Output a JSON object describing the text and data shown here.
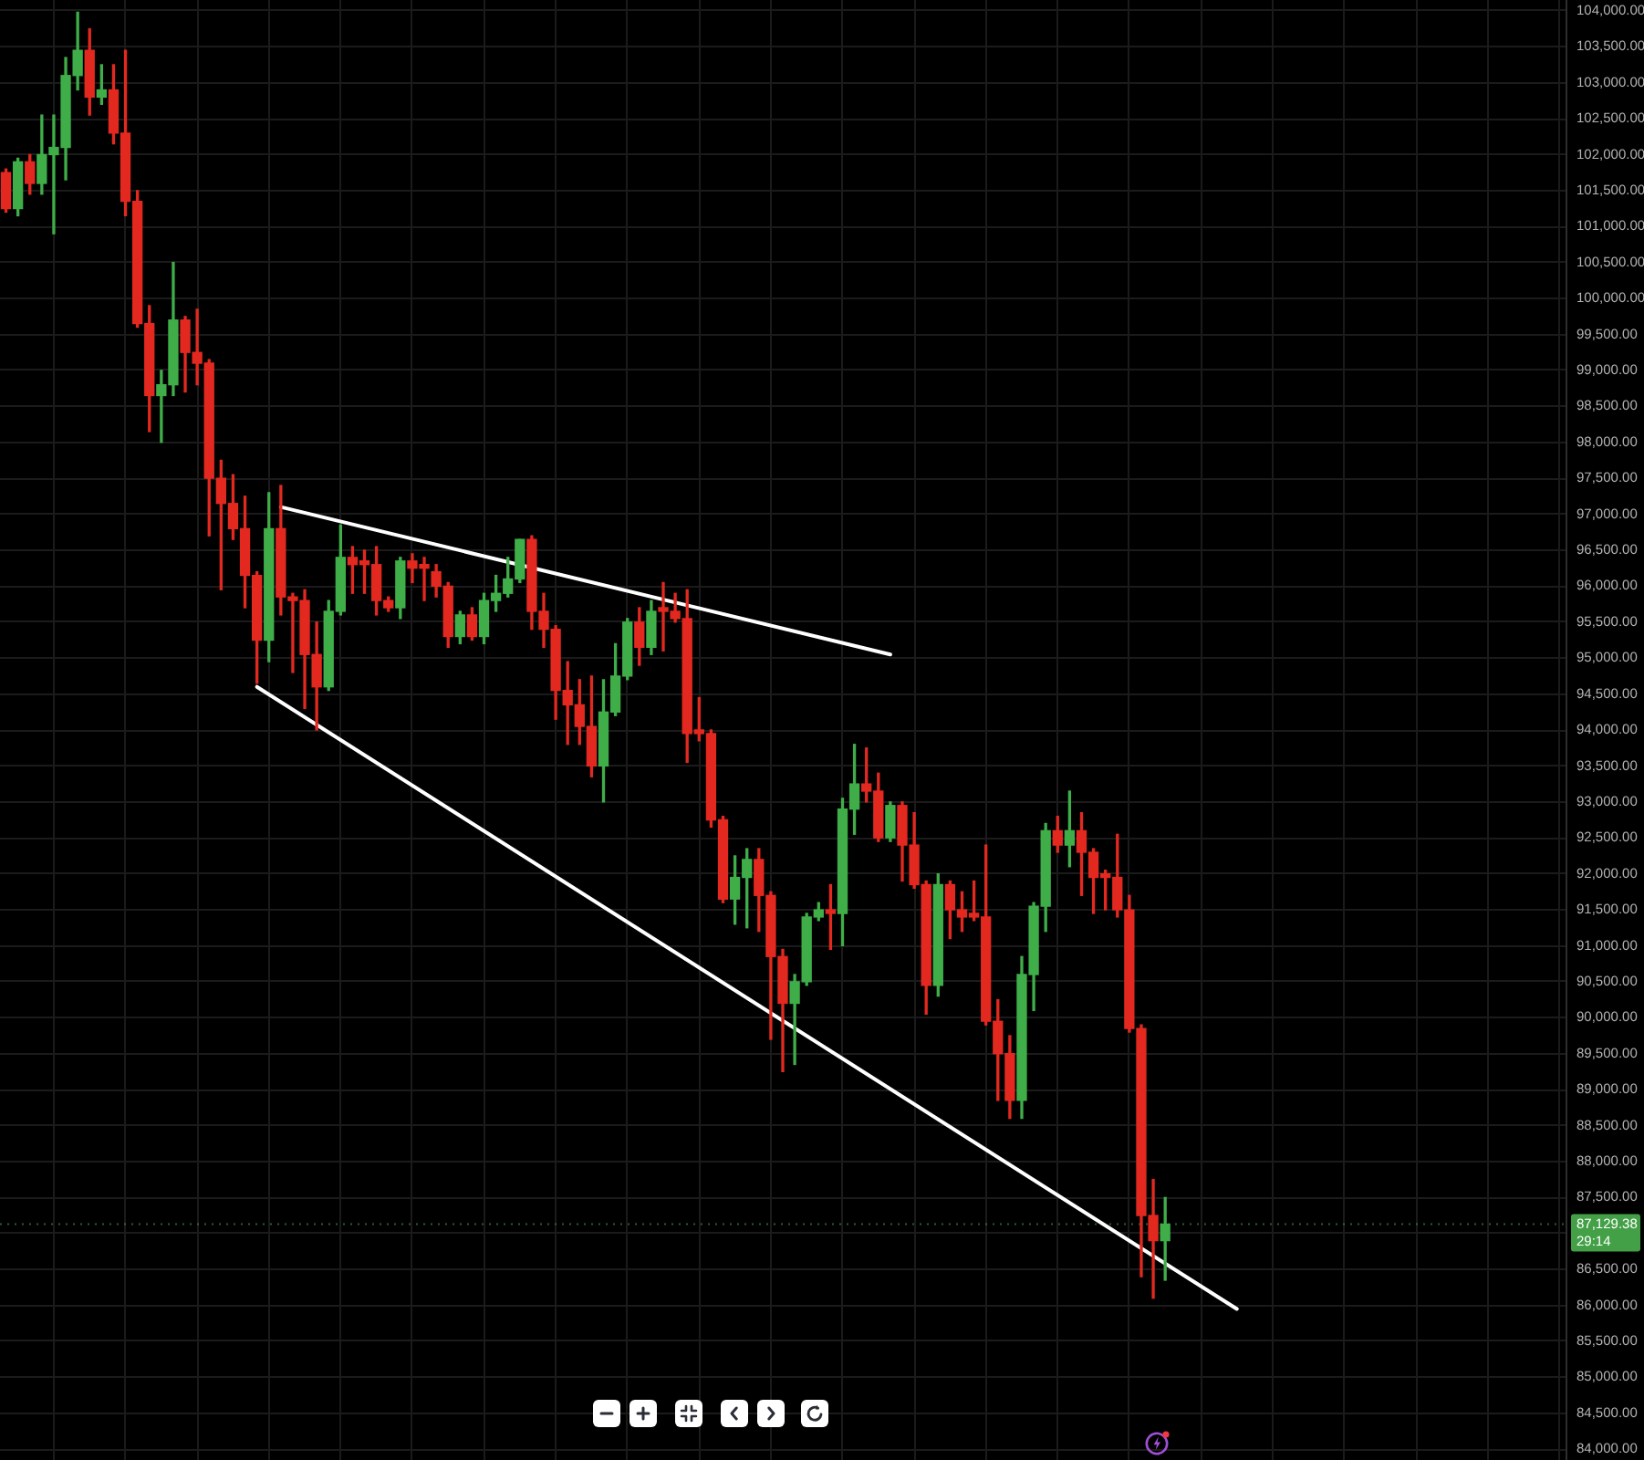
{
  "chart_data": {
    "type": "candlestick",
    "categories": [
      null,
      null,
      null,
      null,
      null,
      null,
      null,
      null,
      null,
      null,
      null,
      null,
      null,
      null,
      null,
      null,
      null,
      null,
      null,
      null,
      null,
      null,
      null,
      null,
      null,
      null,
      null,
      null,
      null,
      null,
      null,
      null,
      null,
      null,
      null,
      null,
      null,
      null,
      null,
      null,
      null,
      null,
      null,
      null,
      null,
      null,
      null,
      null,
      null,
      null,
      null,
      null,
      null,
      null,
      null,
      null,
      null,
      null,
      null,
      null,
      null,
      null,
      null,
      null,
      null,
      null,
      null,
      null,
      null,
      null,
      null,
      null,
      null,
      null,
      null,
      null,
      null,
      null,
      null,
      null,
      null,
      null,
      null,
      null,
      null,
      null,
      null,
      null,
      null,
      null,
      null,
      null,
      null,
      null,
      null,
      null,
      null,
      null,
      null,
      null,
      null,
      null,
      null,
      null,
      null,
      null,
      null,
      null,
      null,
      null,
      null,
      null,
      null,
      null,
      null,
      null,
      null,
      null,
      null,
      null,
      null,
      null,
      null,
      null,
      null,
      null,
      null,
      null,
      null,
      null,
      null
    ],
    "ohlc": [
      [
        101750,
        101800,
        101200,
        101250
      ],
      [
        101250,
        101950,
        101150,
        101900
      ],
      [
        101900,
        102000,
        101450,
        101600
      ],
      [
        101600,
        102550,
        101450,
        102000
      ],
      [
        102000,
        102550,
        100900,
        102100
      ],
      [
        102100,
        103350,
        101650,
        103100
      ],
      [
        103100,
        103980,
        102900,
        103450
      ],
      [
        103450,
        103750,
        102550,
        102800
      ],
      [
        102800,
        103250,
        102700,
        102900
      ],
      [
        102900,
        103250,
        102150,
        102300
      ],
      [
        102300,
        103450,
        101150,
        101350
      ],
      [
        101350,
        101500,
        99600,
        99650
      ],
      [
        99650,
        99900,
        98150,
        98650
      ],
      [
        98650,
        99000,
        98000,
        98800
      ],
      [
        98800,
        100500,
        98650,
        99700
      ],
      [
        99700,
        99750,
        98700,
        99250
      ],
      [
        99250,
        99850,
        98800,
        99100
      ],
      [
        99100,
        99150,
        96700,
        97500
      ],
      [
        97500,
        97750,
        95950,
        97150
      ],
      [
        97150,
        97550,
        96650,
        96800
      ],
      [
        96800,
        97250,
        95700,
        96150
      ],
      [
        96150,
        96200,
        94650,
        95250
      ],
      [
        95250,
        97300,
        94950,
        96800
      ],
      [
        96800,
        97400,
        95600,
        95850
      ],
      [
        95850,
        95900,
        94800,
        95800
      ],
      [
        95800,
        95950,
        94300,
        95050
      ],
      [
        95050,
        95500,
        94000,
        94600
      ],
      [
        94600,
        95800,
        94550,
        95650
      ],
      [
        95650,
        96850,
        95600,
        96400
      ],
      [
        96400,
        96550,
        95900,
        96300
      ],
      [
        96300,
        96500,
        95900,
        96300
      ],
      [
        96300,
        96550,
        95600,
        95800
      ],
      [
        95800,
        95850,
        95650,
        95700
      ],
      [
        95700,
        96400,
        95550,
        96350
      ],
      [
        96350,
        96450,
        96050,
        96250
      ],
      [
        96250,
        96400,
        95800,
        96250
      ],
      [
        96200,
        96300,
        95850,
        96000
      ],
      [
        96000,
        96050,
        95150,
        95300
      ],
      [
        95300,
        95650,
        95200,
        95600
      ],
      [
        95600,
        95700,
        95250,
        95300
      ],
      [
        95300,
        95900,
        95200,
        95800
      ],
      [
        95800,
        96150,
        95650,
        95900
      ],
      [
        95900,
        96400,
        95850,
        96100
      ],
      [
        96100,
        96650,
        96050,
        96650
      ],
      [
        96650,
        96700,
        95400,
        95650
      ],
      [
        95650,
        95900,
        95150,
        95400
      ],
      [
        95400,
        95450,
        94150,
        94550
      ],
      [
        94550,
        94950,
        93800,
        94350
      ],
      [
        94350,
        94700,
        93800,
        94050
      ],
      [
        94050,
        94750,
        93350,
        93500
      ],
      [
        93500,
        94700,
        93000,
        94250
      ],
      [
        94250,
        95200,
        94200,
        94750
      ],
      [
        94750,
        95550,
        94700,
        95500
      ],
      [
        95500,
        95700,
        94900,
        95150
      ],
      [
        95150,
        95800,
        95050,
        95650
      ],
      [
        95650,
        96050,
        95100,
        95650
      ],
      [
        95650,
        95900,
        95500,
        95550
      ],
      [
        95550,
        95950,
        93550,
        93950
      ],
      [
        93950,
        94450,
        93850,
        93950
      ],
      [
        93950,
        94000,
        92650,
        92750
      ],
      [
        92750,
        92800,
        91600,
        91650
      ],
      [
        91650,
        92250,
        91300,
        91950
      ],
      [
        91950,
        92350,
        91250,
        92200
      ],
      [
        92200,
        92350,
        91200,
        91700
      ],
      [
        91700,
        91750,
        89700,
        90850
      ],
      [
        90850,
        90950,
        89250,
        90200
      ],
      [
        90200,
        90600,
        89350,
        90500
      ],
      [
        90500,
        91450,
        90450,
        91400
      ],
      [
        91400,
        91600,
        91350,
        91500
      ],
      [
        91500,
        91850,
        90950,
        91450
      ],
      [
        91450,
        93050,
        91000,
        92900
      ],
      [
        92900,
        93800,
        92550,
        93250
      ],
      [
        93250,
        93750,
        93000,
        93150
      ],
      [
        93150,
        93400,
        92450,
        92500
      ],
      [
        92500,
        93000,
        92450,
        92950
      ],
      [
        92950,
        93000,
        91900,
        92400
      ],
      [
        92400,
        92850,
        91800,
        91850
      ],
      [
        91850,
        91900,
        90050,
        90450
      ],
      [
        90450,
        92000,
        90300,
        91850
      ],
      [
        91850,
        91900,
        91100,
        91500
      ],
      [
        91500,
        91750,
        91200,
        91400
      ],
      [
        91400,
        91900,
        91350,
        91400
      ],
      [
        91400,
        92400,
        89900,
        89950
      ],
      [
        89950,
        90250,
        88850,
        89500
      ],
      [
        89500,
        89750,
        88600,
        88850
      ],
      [
        88850,
        90850,
        88600,
        90600
      ],
      [
        90600,
        91600,
        90100,
        91550
      ],
      [
        91550,
        92700,
        91200,
        92600
      ],
      [
        92600,
        92800,
        92300,
        92400
      ],
      [
        92400,
        93150,
        92100,
        92600
      ],
      [
        92600,
        92850,
        91700,
        92300
      ],
      [
        92300,
        92350,
        91450,
        91950
      ],
      [
        91950,
        92050,
        91500,
        91950
      ],
      [
        91950,
        92550,
        91400,
        91500
      ],
      [
        91500,
        91700,
        89800,
        89850
      ],
      [
        89850,
        89900,
        86400,
        87250
      ],
      [
        87250,
        87750,
        86100,
        86900
      ],
      [
        86900,
        87500,
        86350,
        87129.38
      ],
      null,
      null,
      null,
      null,
      null,
      null,
      null,
      null,
      null,
      null,
      null,
      null,
      null,
      null,
      null,
      null,
      null,
      null,
      null,
      null,
      null,
      null,
      null,
      null,
      null,
      null,
      null,
      null,
      null,
      null,
      null,
      null,
      null
    ],
    "colors": [
      "#e3291f",
      "#3fae49",
      "#e3291f",
      "#3fae49",
      "#3fae49",
      "#3fae49",
      "#3fae49",
      "#e3291f",
      "#3fae49",
      "#e3291f",
      "#e3291f",
      "#e3291f",
      "#e3291f",
      "#3fae49",
      "#3fae49",
      "#e3291f",
      "#e3291f",
      "#e3291f",
      "#e3291f",
      "#e3291f",
      "#e3291f",
      "#e3291f",
      "#3fae49",
      "#e3291f",
      "#e3291f",
      "#e3291f",
      "#e3291f",
      "#3fae49",
      "#3fae49",
      "#e3291f",
      "#e3291f",
      "#e3291f",
      "#e3291f",
      "#3fae49",
      "#e3291f",
      "#e3291f",
      "#e3291f",
      "#e3291f",
      "#3fae49",
      "#e3291f",
      "#3fae49",
      "#3fae49",
      "#3fae49",
      "#3fae49",
      "#e3291f",
      "#e3291f",
      "#e3291f",
      "#e3291f",
      "#e3291f",
      "#e3291f",
      "#3fae49",
      "#3fae49",
      "#3fae49",
      "#e3291f",
      "#3fae49",
      "#e3291f",
      "#e3291f",
      "#e3291f",
      "#e3291f",
      "#e3291f",
      "#e3291f",
      "#3fae49",
      "#3fae49",
      "#e3291f",
      "#e3291f",
      "#e3291f",
      "#3fae49",
      "#3fae49",
      "#3fae49",
      "#e3291f",
      "#3fae49",
      "#3fae49",
      "#e3291f",
      "#e3291f",
      "#3fae49",
      "#e3291f",
      "#e3291f",
      "#e3291f",
      "#3fae49",
      "#e3291f",
      "#e3291f",
      "#e3291f",
      "#e3291f",
      "#e3291f",
      "#e3291f",
      "#3fae49",
      "#3fae49",
      "#3fae49",
      "#e3291f",
      "#3fae49",
      "#e3291f",
      "#e3291f",
      "#e3291f",
      "#e3291f",
      "#e3291f",
      "#e3291f",
      "#e3291f",
      "#3fae49",
      null,
      null,
      null,
      null,
      null,
      null,
      null,
      null,
      null,
      null,
      null,
      null,
      null,
      null,
      null,
      null,
      null,
      null,
      null,
      null,
      null,
      null,
      null,
      null,
      null,
      null,
      null,
      null,
      null,
      null,
      null,
      null,
      null
    ],
    "series": [
      {
        "type": "line",
        "color": "#ffffff",
        "marker": "none",
        "values": [
          null,
          null,
          null,
          null,
          null,
          null,
          null,
          null,
          null,
          null,
          null,
          null,
          null,
          null,
          null,
          null,
          null,
          null,
          null,
          null,
          null,
          null,
          null,
          97100,
          null,
          null,
          null,
          null,
          null,
          null,
          null,
          null,
          null,
          null,
          null,
          null,
          null,
          null,
          null,
          null,
          null,
          null,
          null,
          null,
          null,
          null,
          null,
          null,
          null,
          null,
          null,
          null,
          null,
          null,
          null,
          null,
          null,
          null,
          null,
          null,
          null,
          null,
          null,
          null,
          null,
          null,
          null,
          null,
          null,
          null,
          null,
          null,
          null,
          null,
          95050,
          null,
          null,
          null,
          null,
          null,
          null,
          null,
          null,
          null,
          null,
          null,
          null,
          null,
          null,
          null,
          null,
          null,
          null,
          null,
          null,
          null,
          null,
          null,
          null,
          null,
          null,
          null,
          null,
          null,
          null,
          null,
          null,
          null,
          null,
          null,
          null,
          null,
          null,
          null,
          null,
          null,
          null,
          null,
          null,
          null,
          null,
          null,
          null,
          null,
          null,
          null,
          null,
          null,
          null,
          null,
          null
        ]
      },
      {
        "type": "line",
        "color": "#ffffff",
        "marker": "none",
        "values": [
          null,
          null,
          null,
          null,
          null,
          null,
          null,
          null,
          null,
          null,
          null,
          null,
          null,
          null,
          null,
          null,
          null,
          null,
          null,
          null,
          null,
          94600,
          null,
          null,
          null,
          null,
          null,
          null,
          null,
          null,
          null,
          null,
          null,
          null,
          null,
          null,
          null,
          null,
          null,
          null,
          null,
          null,
          null,
          null,
          null,
          null,
          null,
          null,
          null,
          null,
          null,
          null,
          null,
          null,
          null,
          null,
          null,
          null,
          null,
          null,
          null,
          null,
          null,
          null,
          null,
          null,
          null,
          null,
          null,
          null,
          null,
          null,
          null,
          null,
          null,
          null,
          null,
          null,
          null,
          null,
          null,
          null,
          null,
          null,
          null,
          null,
          null,
          null,
          null,
          null,
          null,
          null,
          null,
          null,
          null,
          null,
          null,
          null,
          null,
          null,
          null,
          null,
          null,
          85950,
          null,
          null,
          null,
          null,
          null,
          null,
          null,
          null,
          null,
          null,
          null,
          null,
          null,
          null,
          null,
          null,
          null,
          null,
          null,
          null,
          null,
          null,
          null,
          null,
          null,
          null,
          null
        ]
      }
    ],
    "ylim": [
      83850,
      104150
    ],
    "yticks": [
      {
        "value": 84000,
        "label": "84,000.00"
      },
      {
        "value": 84500,
        "label": "84,500.00"
      },
      {
        "value": 85000,
        "label": "85,000.00"
      },
      {
        "value": 85500,
        "label": "85,500.00"
      },
      {
        "value": 86000,
        "label": "86,000.00"
      },
      {
        "value": 86500,
        "label": "86,500.00"
      },
      {
        "value": 87000,
        "label": null
      },
      {
        "value": 87500,
        "label": "87,500.00"
      },
      {
        "value": 88000,
        "label": "88,000.00"
      },
      {
        "value": 88500,
        "label": "88,500.00"
      },
      {
        "value": 89000,
        "label": "89,000.00"
      },
      {
        "value": 89500,
        "label": "89,500.00"
      },
      {
        "value": 90000,
        "label": "90,000.00"
      },
      {
        "value": 90500,
        "label": "90,500.00"
      },
      {
        "value": 91000,
        "label": "91,000.00"
      },
      {
        "value": 91500,
        "label": "91,500.00"
      },
      {
        "value": 92000,
        "label": "92,000.00"
      },
      {
        "value": 92500,
        "label": "92,500.00"
      },
      {
        "value": 93000,
        "label": "93,000.00"
      },
      {
        "value": 93500,
        "label": "93,500.00"
      },
      {
        "value": 94000,
        "label": "94,000.00"
      },
      {
        "value": 94500,
        "label": "94,500.00"
      },
      {
        "value": 95000,
        "label": "95,000.00"
      },
      {
        "value": 95500,
        "label": "95,500.00"
      },
      {
        "value": 96000,
        "label": "96,000.00"
      },
      {
        "value": 96500,
        "label": "96,500.00"
      },
      {
        "value": 97000,
        "label": "97,000.00"
      },
      {
        "value": 97500,
        "label": "97,500.00"
      },
      {
        "value": 98000,
        "label": "98,000.00"
      },
      {
        "value": 98500,
        "label": "98,500.00"
      },
      {
        "value": 99000,
        "label": "99,000.00"
      },
      {
        "value": 99500,
        "label": "99,500.00"
      },
      {
        "value": 100000,
        "label": "100,000.00"
      },
      {
        "value": 100500,
        "label": "100,500.00"
      },
      {
        "value": 101000,
        "label": "101,000.00"
      },
      {
        "value": 101500,
        "label": "101,500.00"
      },
      {
        "value": 102000,
        "label": "102,000.00"
      },
      {
        "value": 102500,
        "label": "102,500.00"
      },
      {
        "value": 103000,
        "label": "103,000.00"
      },
      {
        "value": 103500,
        "label": "103,500.00"
      },
      {
        "value": 104000,
        "label": "104,000.00"
      }
    ],
    "grid": true,
    "tick_labels": "y",
    "ref_lines": [
      {
        "axis": "y",
        "value": 87129.38,
        "label": "87,129.38",
        "color": "#43a047",
        "line_style": "dotted"
      }
    ],
    "annotations": [
      "29:14"
    ]
  }
}
